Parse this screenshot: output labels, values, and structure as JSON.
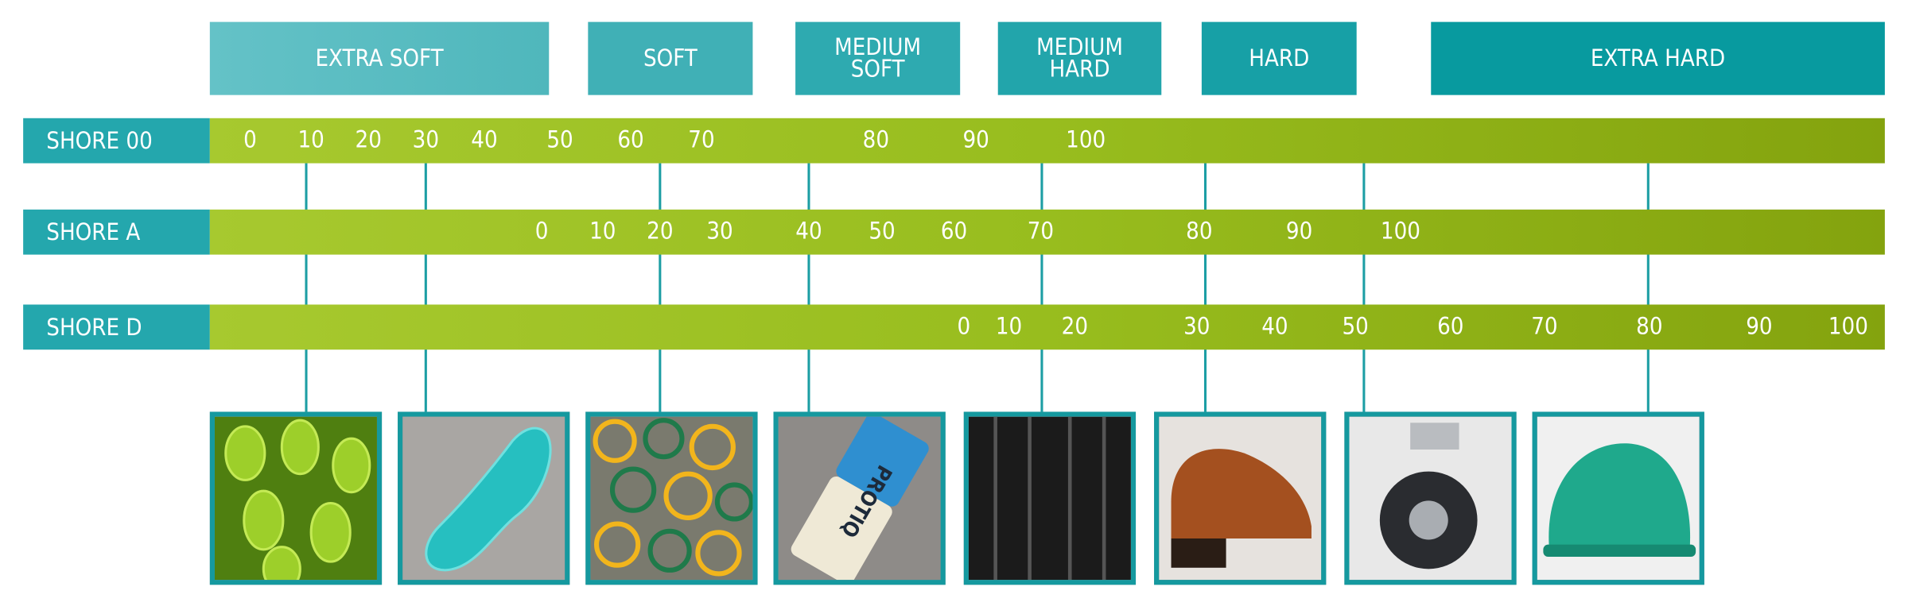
{
  "categories": [
    {
      "label": "EXTRA SOFT"
    },
    {
      "label": "SOFT"
    },
    {
      "label": "MEDIUM SOFT"
    },
    {
      "label": "MEDIUM HARD"
    },
    {
      "label": "HARD"
    },
    {
      "label": "EXTRA HARD"
    }
  ],
  "scales": [
    {
      "label": "SHORE 00",
      "ticks": [
        "0",
        "10",
        "20",
        "30",
        "40",
        "50",
        "60",
        "70",
        "80",
        "90",
        "100"
      ]
    },
    {
      "label": "SHORE A",
      "ticks": [
        "0",
        "10",
        "20",
        "30",
        "40",
        "50",
        "60",
        "70",
        "80",
        "90",
        "100"
      ]
    },
    {
      "label": "SHORE D",
      "ticks": [
        "0",
        "10",
        "20",
        "30",
        "40",
        "50",
        "60",
        "70",
        "80",
        "90",
        "100"
      ]
    }
  ],
  "examples": [
    {
      "icon": "gummy-bears-image"
    },
    {
      "icon": "gel-insole-image"
    },
    {
      "icon": "rubber-bands-image"
    },
    {
      "icon": "eraser-image",
      "logo_text": "PROTIQ"
    },
    {
      "icon": "tire-image"
    },
    {
      "icon": "leather-shoe-heel-image"
    },
    {
      "icon": "caster-wheel-image"
    },
    {
      "icon": "hard-hat-image"
    }
  ],
  "colors": {
    "category": "#1aa0a6",
    "scale_label": "#24a7ad",
    "bar": "#98bd1e",
    "connector": "#1c9ea4"
  }
}
